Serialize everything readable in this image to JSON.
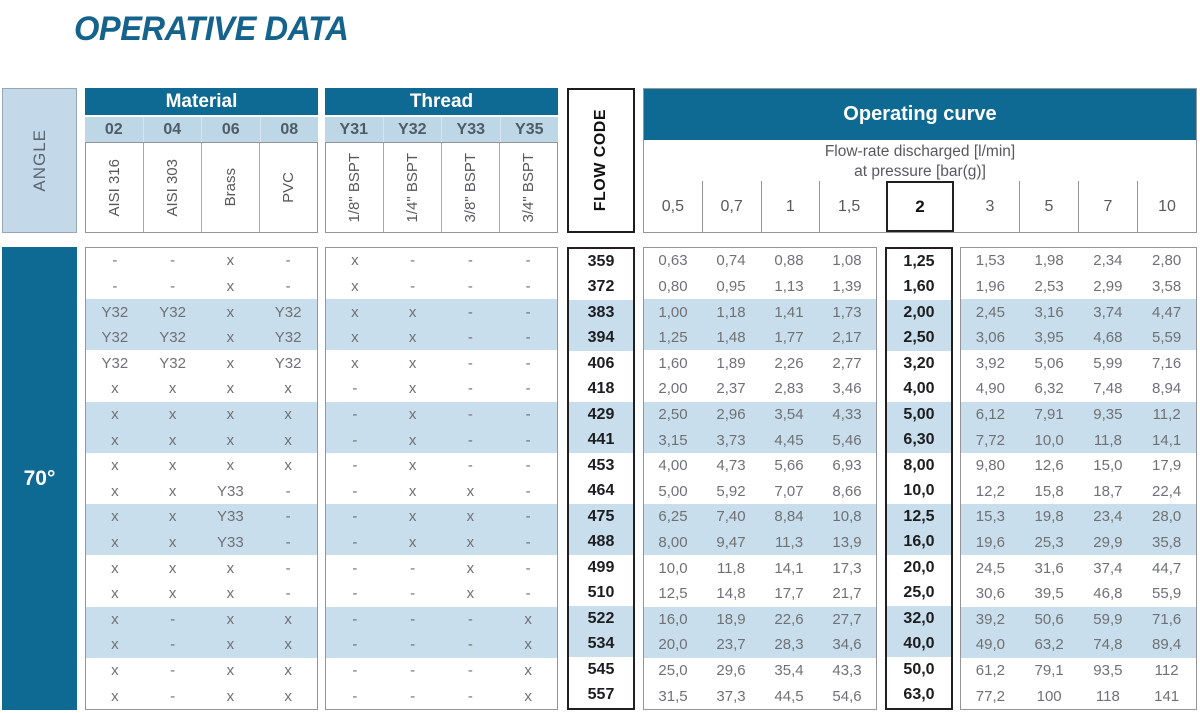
{
  "page_title": "OPERATIVE DATA",
  "colors": {
    "accent_dark_blue": "#0f6a93",
    "subheader_light_blue": "#bdd7e7",
    "row_highlight_blue": "#c9deec",
    "angle_box_blue": "#c3d9e9",
    "text_gray": "#58595b",
    "text_black": "#231f20",
    "title_blue": "#15638c"
  },
  "angle": {
    "header_label": "ANGLE",
    "value": "70°"
  },
  "material": {
    "title": "Material",
    "codes": [
      "02",
      "04",
      "06",
      "08"
    ],
    "labels": [
      "AISI 316",
      "AISI 303",
      "Brass",
      "PVC"
    ]
  },
  "thread": {
    "title": "Thread",
    "codes": [
      "Y31",
      "Y32",
      "Y33",
      "Y35"
    ],
    "labels": [
      "1/8\" BSPT",
      "1/4\" BSPT",
      "3/8\" BSPT",
      "3/4\" BSPT"
    ]
  },
  "flow_code_label": "FLOW CODE",
  "operating_curve": {
    "title": "Operating curve",
    "subtitle_line1": "Flow-rate discharged [l/min]",
    "subtitle_line2": "at pressure [bar(g)]",
    "pressures_left": [
      "0,5",
      "0,7",
      "1",
      "1,5"
    ],
    "pressure_highlight": "2",
    "pressures_right": [
      "3",
      "5",
      "7",
      "10"
    ]
  },
  "table": {
    "rows": [
      {
        "code": "359",
        "material": [
          "-",
          "-",
          "x",
          "-"
        ],
        "thread": [
          "x",
          "-",
          "-",
          "-"
        ],
        "left": [
          "0,63",
          "0,74",
          "0,88",
          "1,08"
        ],
        "mid": "1,25",
        "right": [
          "1,53",
          "1,98",
          "2,34",
          "2,80"
        ],
        "highlight": false
      },
      {
        "code": "372",
        "material": [
          "-",
          "-",
          "x",
          "-"
        ],
        "thread": [
          "x",
          "-",
          "-",
          "-"
        ],
        "left": [
          "0,80",
          "0,95",
          "1,13",
          "1,39"
        ],
        "mid": "1,60",
        "right": [
          "1,96",
          "2,53",
          "2,99",
          "3,58"
        ],
        "highlight": false
      },
      {
        "code": "383",
        "material": [
          "Y32",
          "Y32",
          "x",
          "Y32"
        ],
        "thread": [
          "x",
          "x",
          "-",
          "-"
        ],
        "left": [
          "1,00",
          "1,18",
          "1,41",
          "1,73"
        ],
        "mid": "2,00",
        "right": [
          "2,45",
          "3,16",
          "3,74",
          "4,47"
        ],
        "highlight": true
      },
      {
        "code": "394",
        "material": [
          "Y32",
          "Y32",
          "x",
          "Y32"
        ],
        "thread": [
          "x",
          "x",
          "-",
          "-"
        ],
        "left": [
          "1,25",
          "1,48",
          "1,77",
          "2,17"
        ],
        "mid": "2,50",
        "right": [
          "3,06",
          "3,95",
          "4,68",
          "5,59"
        ],
        "highlight": true
      },
      {
        "code": "406",
        "material": [
          "Y32",
          "Y32",
          "x",
          "Y32"
        ],
        "thread": [
          "x",
          "x",
          "-",
          "-"
        ],
        "left": [
          "1,60",
          "1,89",
          "2,26",
          "2,77"
        ],
        "mid": "3,20",
        "right": [
          "3,92",
          "5,06",
          "5,99",
          "7,16"
        ],
        "highlight": false
      },
      {
        "code": "418",
        "material": [
          "x",
          "x",
          "x",
          "x"
        ],
        "thread": [
          "-",
          "x",
          "-",
          "-"
        ],
        "left": [
          "2,00",
          "2,37",
          "2,83",
          "3,46"
        ],
        "mid": "4,00",
        "right": [
          "4,90",
          "6,32",
          "7,48",
          "8,94"
        ],
        "highlight": false
      },
      {
        "code": "429",
        "material": [
          "x",
          "x",
          "x",
          "x"
        ],
        "thread": [
          "-",
          "x",
          "-",
          "-"
        ],
        "left": [
          "2,50",
          "2,96",
          "3,54",
          "4,33"
        ],
        "mid": "5,00",
        "right": [
          "6,12",
          "7,91",
          "9,35",
          "11,2"
        ],
        "highlight": true
      },
      {
        "code": "441",
        "material": [
          "x",
          "x",
          "x",
          "x"
        ],
        "thread": [
          "-",
          "x",
          "-",
          "-"
        ],
        "left": [
          "3,15",
          "3,73",
          "4,45",
          "5,46"
        ],
        "mid": "6,30",
        "right": [
          "7,72",
          "10,0",
          "11,8",
          "14,1"
        ],
        "highlight": true
      },
      {
        "code": "453",
        "material": [
          "x",
          "x",
          "x",
          "x"
        ],
        "thread": [
          "-",
          "x",
          "-",
          "-"
        ],
        "left": [
          "4,00",
          "4,73",
          "5,66",
          "6,93"
        ],
        "mid": "8,00",
        "right": [
          "9,80",
          "12,6",
          "15,0",
          "17,9"
        ],
        "highlight": false
      },
      {
        "code": "464",
        "material": [
          "x",
          "x",
          "Y33",
          "-"
        ],
        "thread": [
          "-",
          "x",
          "x",
          "-"
        ],
        "left": [
          "5,00",
          "5,92",
          "7,07",
          "8,66"
        ],
        "mid": "10,0",
        "right": [
          "12,2",
          "15,8",
          "18,7",
          "22,4"
        ],
        "highlight": false
      },
      {
        "code": "475",
        "material": [
          "x",
          "x",
          "Y33",
          "-"
        ],
        "thread": [
          "-",
          "x",
          "x",
          "-"
        ],
        "left": [
          "6,25",
          "7,40",
          "8,84",
          "10,8"
        ],
        "mid": "12,5",
        "right": [
          "15,3",
          "19,8",
          "23,4",
          "28,0"
        ],
        "highlight": true
      },
      {
        "code": "488",
        "material": [
          "x",
          "x",
          "Y33",
          "-"
        ],
        "thread": [
          "-",
          "x",
          "x",
          "-"
        ],
        "left": [
          "8,00",
          "9,47",
          "11,3",
          "13,9"
        ],
        "mid": "16,0",
        "right": [
          "19,6",
          "25,3",
          "29,9",
          "35,8"
        ],
        "highlight": true
      },
      {
        "code": "499",
        "material": [
          "x",
          "x",
          "x",
          "-"
        ],
        "thread": [
          "-",
          "-",
          "x",
          "-"
        ],
        "left": [
          "10,0",
          "11,8",
          "14,1",
          "17,3"
        ],
        "mid": "20,0",
        "right": [
          "24,5",
          "31,6",
          "37,4",
          "44,7"
        ],
        "highlight": false
      },
      {
        "code": "510",
        "material": [
          "x",
          "x",
          "x",
          "-"
        ],
        "thread": [
          "-",
          "-",
          "x",
          "-"
        ],
        "left": [
          "12,5",
          "14,8",
          "17,7",
          "21,7"
        ],
        "mid": "25,0",
        "right": [
          "30,6",
          "39,5",
          "46,8",
          "55,9"
        ],
        "highlight": false
      },
      {
        "code": "522",
        "material": [
          "x",
          "-",
          "x",
          "x"
        ],
        "thread": [
          "-",
          "-",
          "-",
          "x"
        ],
        "left": [
          "16,0",
          "18,9",
          "22,6",
          "27,7"
        ],
        "mid": "32,0",
        "right": [
          "39,2",
          "50,6",
          "59,9",
          "71,6"
        ],
        "highlight": true
      },
      {
        "code": "534",
        "material": [
          "x",
          "-",
          "x",
          "x"
        ],
        "thread": [
          "-",
          "-",
          "-",
          "x"
        ],
        "left": [
          "20,0",
          "23,7",
          "28,3",
          "34,6"
        ],
        "mid": "40,0",
        "right": [
          "49,0",
          "63,2",
          "74,8",
          "89,4"
        ],
        "highlight": true
      },
      {
        "code": "545",
        "material": [
          "x",
          "-",
          "x",
          "x"
        ],
        "thread": [
          "-",
          "-",
          "-",
          "x"
        ],
        "left": [
          "25,0",
          "29,6",
          "35,4",
          "43,3"
        ],
        "mid": "50,0",
        "right": [
          "61,2",
          "79,1",
          "93,5",
          "112"
        ],
        "highlight": false
      },
      {
        "code": "557",
        "material": [
          "x",
          "-",
          "x",
          "x"
        ],
        "thread": [
          "-",
          "-",
          "-",
          "x"
        ],
        "left": [
          "31,5",
          "37,3",
          "44,5",
          "54,6"
        ],
        "mid": "63,0",
        "right": [
          "77,2",
          "100",
          "118",
          "141"
        ],
        "highlight": false
      }
    ]
  }
}
